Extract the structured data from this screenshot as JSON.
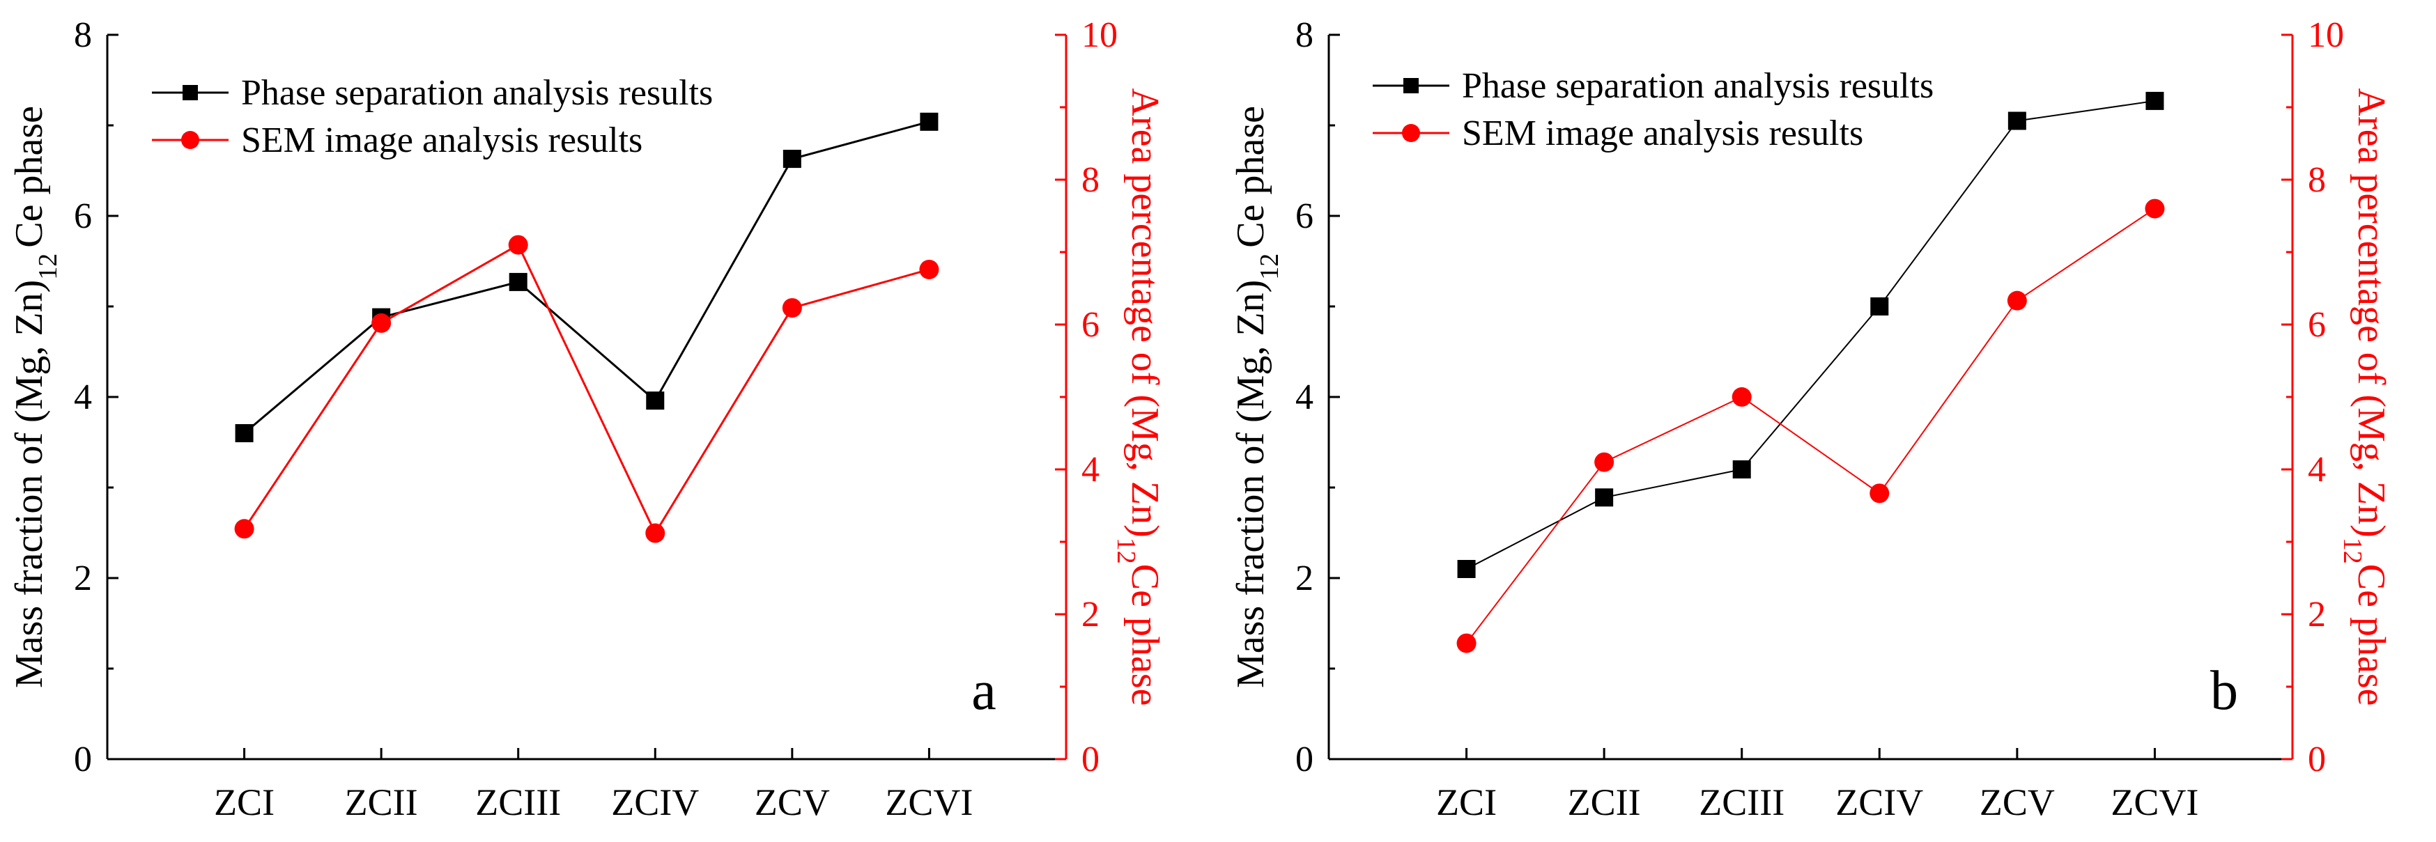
{
  "colors": {
    "black": "#000000",
    "red": "#ff0000"
  },
  "chart_data": [
    {
      "type": "line",
      "panel_label": "a",
      "categories": [
        "ZCI",
        "ZCII",
        "ZCIII",
        "ZCIV",
        "ZCV",
        "ZCVI"
      ],
      "left_axis": {
        "label_main": "Mass fraction of (Mg, Zn)",
        "label_sub": "12",
        "label_tail": "Ce phase",
        "ylim": [
          0,
          8
        ],
        "ticks": [
          "0",
          "2",
          "4",
          "6",
          "8"
        ]
      },
      "right_axis": {
        "label_main": "Area percentage of (Mg, Zn)",
        "label_sub": "12",
        "label_tail": "Ce phase",
        "ylim": [
          0,
          10
        ],
        "ticks": [
          "0",
          "2",
          "4",
          "6",
          "8",
          "10"
        ]
      },
      "legend_position": "top-left",
      "series": [
        {
          "name": "Phase separation analysis results",
          "axis": "left",
          "marker": "square",
          "color": "#000000",
          "values": [
            3.6,
            4.88,
            5.27,
            3.96,
            6.63,
            7.04
          ]
        },
        {
          "name": "SEM image analysis results",
          "axis": "right",
          "marker": "circle",
          "color": "#ff0000",
          "values": [
            3.18,
            6.02,
            7.1,
            3.12,
            6.23,
            6.76
          ]
        }
      ]
    },
    {
      "type": "line",
      "panel_label": "b",
      "categories": [
        "ZCI",
        "ZCII",
        "ZCIII",
        "ZCIV",
        "ZCV",
        "ZCVI"
      ],
      "left_axis": {
        "label_main": "Mass fraction of (Mg, Zn)",
        "label_sub": "12",
        "label_tail": "Ce phase",
        "ylim": [
          0,
          8
        ],
        "ticks": [
          "0",
          "2",
          "4",
          "6",
          "8"
        ]
      },
      "right_axis": {
        "label_main": "Area percentage of (Mg, Zn)",
        "label_sub": "12",
        "label_tail": "Ce phase",
        "ylim": [
          0,
          10
        ],
        "ticks": [
          "0",
          "2",
          "4",
          "6",
          "8",
          "10"
        ]
      },
      "legend_position": "top-left",
      "series": [
        {
          "name": "Phase separation analysis results",
          "axis": "left",
          "marker": "square",
          "color": "#000000",
          "values": [
            2.1,
            2.89,
            3.2,
            5.0,
            7.05,
            7.27
          ]
        },
        {
          "name": "SEM image analysis results",
          "axis": "right",
          "marker": "circle",
          "color": "#ff0000",
          "values": [
            1.6,
            4.1,
            5.0,
            3.67,
            6.33,
            7.6
          ]
        }
      ]
    }
  ]
}
